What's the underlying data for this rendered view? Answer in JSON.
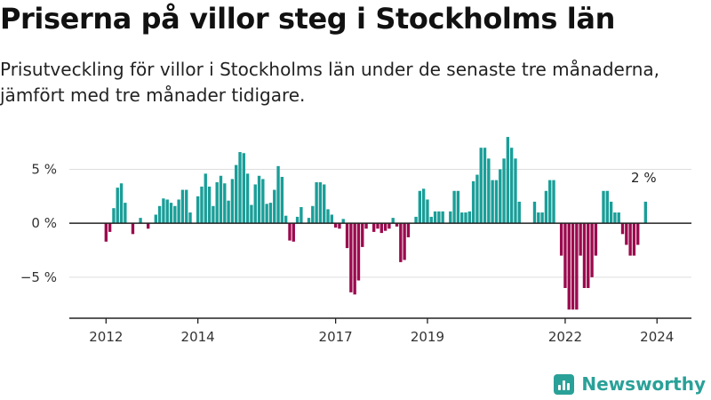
{
  "header": {
    "title": "Priserna på villor steg i Stockholms län",
    "subtitle": "Prisutveckling för villor i Stockholms län under de senaste tre månaderna, jämfört med tre månader tidigare."
  },
  "brand": {
    "name": "Newsworthy",
    "icon": "newsworthy-logo-icon",
    "color": "#2aa198"
  },
  "colors": {
    "positive": "#1a9e98",
    "negative": "#9b0a4e",
    "zero_line": "#222222",
    "grid": "#dddddd",
    "axis": "#222222"
  },
  "chart_data": {
    "type": "bar",
    "title": "Priserna på villor steg i Stockholms län",
    "xlabel": "",
    "ylabel": "",
    "y_ticks": [
      {
        "value": 5,
        "label": "5 %"
      },
      {
        "value": 0,
        "label": "0 %"
      },
      {
        "value": -5,
        "label": "−5 %"
      }
    ],
    "x_ticks": [
      {
        "value": 2012,
        "label": "2012"
      },
      {
        "value": 2014,
        "label": "2014"
      },
      {
        "value": 2017,
        "label": "2017"
      },
      {
        "value": 2019,
        "label": "2019"
      },
      {
        "value": 2022,
        "label": "2022"
      },
      {
        "value": 2024,
        "label": "2024"
      }
    ],
    "ylim": [
      -8.8,
      8.5
    ],
    "xlim": [
      2011.2,
      2024.75
    ],
    "start": 2012,
    "annotation": {
      "value": 2,
      "label": "2 %"
    },
    "grid": true,
    "legend": "none",
    "values": [
      -1.7,
      -0.8,
      1.4,
      3.3,
      3.7,
      1.9,
      0,
      -1,
      0,
      0.5,
      0,
      -0.5,
      0,
      0.8,
      1.6,
      2.3,
      2.2,
      1.9,
      1.6,
      2.2,
      3.1,
      3.1,
      1,
      0,
      2.5,
      3.4,
      4.6,
      3.4,
      1.6,
      3.8,
      4.4,
      3.7,
      2.1,
      4.1,
      5.4,
      6.6,
      6.5,
      4.6,
      1.7,
      3.6,
      4.4,
      4.1,
      1.8,
      1.9,
      3.1,
      5.3,
      4.3,
      0.7,
      -1.6,
      -1.7,
      0.6,
      1.5,
      0,
      0.5,
      1.6,
      3.8,
      3.8,
      3.6,
      1.3,
      0.8,
      -0.4,
      -0.5,
      0.4,
      -2.3,
      -6.4,
      -6.6,
      -5.3,
      -2.2,
      -0.5,
      0,
      -0.8,
      -0.5,
      -0.9,
      -0.7,
      -0.5,
      0.5,
      -0.3,
      -3.6,
      -3.4,
      -1.3,
      0,
      0.6,
      3,
      3.2,
      2.2,
      0.6,
      1.1,
      1.1,
      1.1,
      0,
      1.1,
      3,
      3,
      1,
      1,
      1.1,
      3.9,
      4.5,
      7,
      7,
      6,
      4,
      4,
      5,
      6,
      8,
      7,
      6,
      2,
      0,
      0,
      0,
      2,
      1,
      1,
      3,
      4,
      4,
      0,
      -3,
      -6,
      -8,
      -8,
      -8,
      -3,
      -6,
      -6,
      -5,
      -3,
      0,
      3,
      3,
      2,
      1,
      1,
      -1,
      -2,
      -3,
      -3,
      -2,
      0,
      2
    ]
  }
}
